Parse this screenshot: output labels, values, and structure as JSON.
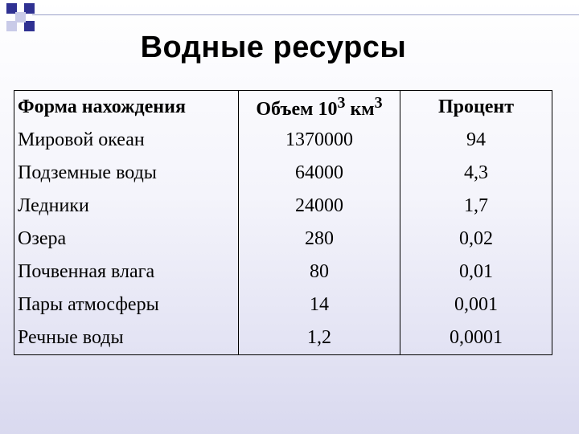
{
  "slide": {
    "title": "Водные ресурсы"
  },
  "table": {
    "headers": {
      "form": "Форма нахождения",
      "volume_prefix": "Объем 10",
      "volume_exp": "3",
      "volume_unit": " км",
      "volume_unit_exp": "3",
      "percent": "Процент"
    },
    "rows": [
      {
        "form": "Мировой океан",
        "volume": "1370000",
        "percent": "94"
      },
      {
        "form": "Подземные воды",
        "volume": "64000",
        "percent": "4,3"
      },
      {
        "form": "Ледники",
        "volume": "24000",
        "percent": "1,7"
      },
      {
        "form": "Озера",
        "volume": "280",
        "percent": "0,02"
      },
      {
        "form": "Почвенная влага",
        "volume": "80",
        "percent": "0,01"
      },
      {
        "form": "Пары атмосферы",
        "volume": "14",
        "percent": "0,001"
      },
      {
        "form": "Речные воды",
        "volume": "1,2",
        "percent": "0,0001"
      }
    ]
  }
}
